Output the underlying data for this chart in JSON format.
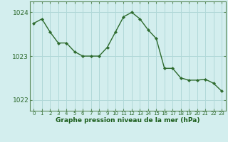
{
  "x": [
    0,
    1,
    2,
    3,
    4,
    5,
    6,
    7,
    8,
    9,
    10,
    11,
    12,
    13,
    14,
    15,
    16,
    17,
    18,
    19,
    20,
    21,
    22,
    23
  ],
  "y": [
    1023.75,
    1023.85,
    1023.55,
    1023.3,
    1023.3,
    1023.1,
    1023.0,
    1023.0,
    1023.0,
    1023.2,
    1023.55,
    1023.9,
    1024.0,
    1023.85,
    1023.6,
    1023.4,
    1022.72,
    1022.72,
    1022.5,
    1022.45,
    1022.45,
    1022.47,
    1022.38,
    1022.2
  ],
  "line_color": "#2d6a2d",
  "marker_color": "#2d6a2d",
  "bg_color": "#d3eeee",
  "grid_color": "#b0d8d8",
  "xlabel": "Graphe pression niveau de la mer (hPa)",
  "xlabel_color": "#1a5c1a",
  "tick_color": "#2d6a2d",
  "ylim": [
    1021.75,
    1024.25
  ],
  "yticks": [
    1022,
    1023,
    1024
  ],
  "xlim": [
    -0.5,
    23.5
  ],
  "border_color": "#5a8a5a"
}
